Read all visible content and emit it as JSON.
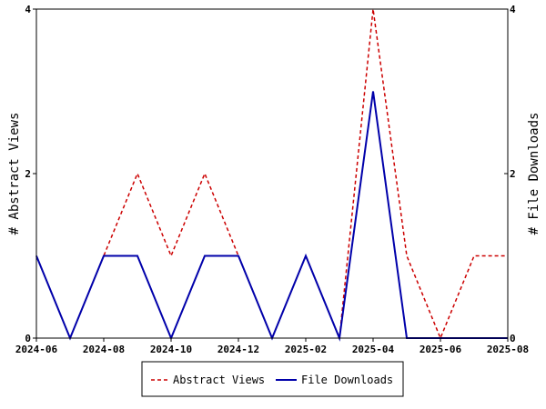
{
  "chart_data": {
    "type": "line",
    "x": [
      "2024-06",
      "2024-07",
      "2024-08",
      "2024-09",
      "2024-10",
      "2024-11",
      "2024-12",
      "2025-01",
      "2025-02",
      "2025-03",
      "2025-04",
      "2025-05",
      "2025-06",
      "2025-07",
      "2025-08"
    ],
    "x_ticks": [
      "2024-06",
      "2024-08",
      "2024-10",
      "2024-12",
      "2025-02",
      "2025-04",
      "2025-06",
      "2025-08"
    ],
    "series": [
      {
        "name": "Abstract Views",
        "values": [
          1,
          0,
          1,
          2,
          1,
          2,
          1,
          0,
          1,
          0,
          4,
          1,
          0,
          1,
          1
        ],
        "color": "#cc0000",
        "style": "dashed",
        "axis": "left"
      },
      {
        "name": "File Downloads",
        "values": [
          1,
          0,
          1,
          1,
          0,
          1,
          1,
          0,
          1,
          0,
          3,
          0,
          0,
          0,
          0
        ],
        "color": "#0000aa",
        "style": "solid",
        "axis": "right"
      }
    ],
    "ylabel_left": "# Abstract Views",
    "ylabel_right": "# File Downloads",
    "ylim": [
      0,
      4
    ],
    "y_ticks": [
      0,
      2,
      4
    ],
    "grid": false,
    "legend": "bottom"
  }
}
